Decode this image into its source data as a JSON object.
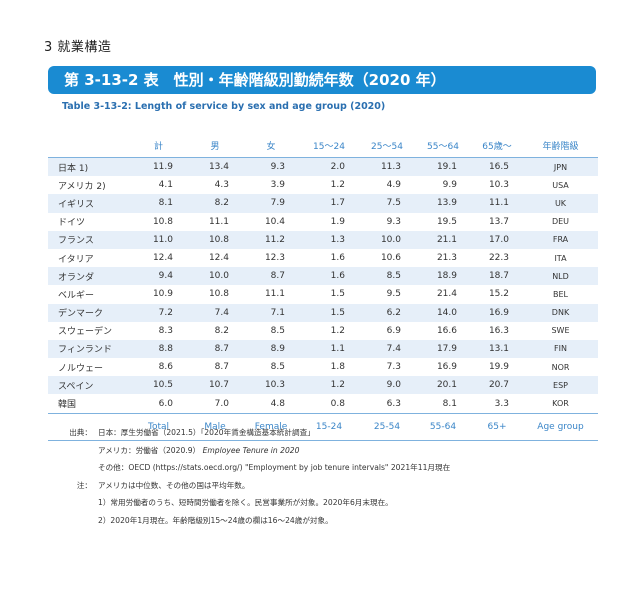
{
  "chapter": "3 就業構造",
  "title": "第 3-13-2 表　性別・年齢階級別勤続年数（2020 年）",
  "subtitle": "Table 3-13-2: Length of service by sex and age group (2020)",
  "headers_jp": [
    "",
    "計",
    "男",
    "女",
    "15～24",
    "25～54",
    "55～64",
    "65歳～",
    "年齢階級"
  ],
  "headers_en": [
    "",
    "Total",
    "Male",
    "Female",
    "15-24",
    "25-54",
    "55-64",
    "65+",
    "Age group"
  ],
  "rows": [
    {
      "name": "日本 1)",
      "values": [
        "11.9",
        "13.4",
        "9.3",
        "2.0",
        "11.3",
        "19.1",
        "16.5"
      ],
      "code": "JPN"
    },
    {
      "name": "アメリカ 2)",
      "values": [
        "4.1",
        "4.3",
        "3.9",
        "1.2",
        "4.9",
        "9.9",
        "10.3"
      ],
      "code": "USA"
    },
    {
      "name": "イギリス",
      "values": [
        "8.1",
        "8.2",
        "7.9",
        "1.7",
        "7.5",
        "13.9",
        "11.1"
      ],
      "code": "UK"
    },
    {
      "name": "ドイツ",
      "values": [
        "10.8",
        "11.1",
        "10.4",
        "1.9",
        "9.3",
        "19.5",
        "13.7"
      ],
      "code": "DEU"
    },
    {
      "name": "フランス",
      "values": [
        "11.0",
        "10.8",
        "11.2",
        "1.3",
        "10.0",
        "21.1",
        "17.0"
      ],
      "code": "FRA"
    },
    {
      "name": "イタリア",
      "values": [
        "12.4",
        "12.4",
        "12.3",
        "1.6",
        "10.6",
        "21.3",
        "22.3"
      ],
      "code": "ITA"
    },
    {
      "name": "オランダ",
      "values": [
        "9.4",
        "10.0",
        "8.7",
        "1.6",
        "8.5",
        "18.9",
        "18.7"
      ],
      "code": "NLD"
    },
    {
      "name": "ベルギー",
      "values": [
        "10.9",
        "10.8",
        "11.1",
        "1.5",
        "9.5",
        "21.4",
        "15.2"
      ],
      "code": "BEL"
    },
    {
      "name": "デンマーク",
      "values": [
        "7.2",
        "7.4",
        "7.1",
        "1.5",
        "6.2",
        "14.0",
        "16.9"
      ],
      "code": "DNK"
    },
    {
      "name": "スウェーデン",
      "values": [
        "8.3",
        "8.2",
        "8.5",
        "1.2",
        "6.9",
        "16.6",
        "16.3"
      ],
      "code": "SWE"
    },
    {
      "name": "フィンランド",
      "values": [
        "8.8",
        "8.7",
        "8.9",
        "1.1",
        "7.4",
        "17.9",
        "13.1"
      ],
      "code": "FIN"
    },
    {
      "name": "ノルウェー",
      "values": [
        "8.6",
        "8.7",
        "8.5",
        "1.8",
        "7.3",
        "16.9",
        "19.9"
      ],
      "code": "NOR"
    },
    {
      "name": "スペイン",
      "values": [
        "10.5",
        "10.7",
        "10.3",
        "1.2",
        "9.0",
        "20.1",
        "20.7"
      ],
      "code": "ESP"
    },
    {
      "name": "韓国",
      "values": [
        "6.0",
        "7.0",
        "4.8",
        "0.8",
        "6.3",
        "8.1",
        "3.3"
      ],
      "code": "KOR"
    }
  ],
  "notes": {
    "source_label": "出典：",
    "source_lines": [
      {
        "prefix": "日本：",
        "text": "厚生労働省（2021.5）「2020年賃金構造基本統計調査」"
      },
      {
        "prefix": "アメリカ：",
        "text": "労働省（2020.9）",
        "italic": "Employee Tenure in 2020"
      },
      {
        "prefix": "その他：",
        "text": "OECD (https://stats.oecd.org/) \"Employment by job tenure intervals\" 2021年11月現在"
      }
    ],
    "note_label": "注：",
    "note_lines": [
      "アメリカは中位数、その他の国は平均年数。",
      "1）常用労働者のうち、短時間労働者を除く。民営事業所が対象。2020年6月末現在。",
      "2）2020年1月現在。年齢階級別15～24歳の欄は16～24歳が対象。"
    ]
  }
}
